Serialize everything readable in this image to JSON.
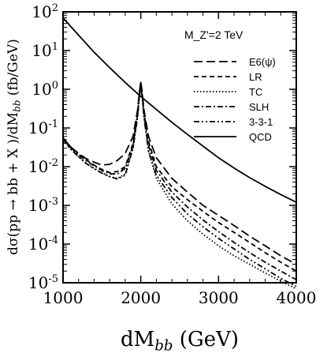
{
  "chart_data": {
    "type": "line",
    "xlabel": "dM_bb  (GeV)",
    "ylabel": "dσ(pp → bb + X )/dM_bb  (fb/GeV)",
    "xlim": [
      1000,
      4000
    ],
    "ylim": [
      1e-05,
      100
    ],
    "y_scale": "log",
    "grid": false,
    "legend_position": "top-right",
    "annotation": "M_Z'=2 TeV",
    "x_ticks": [
      1000,
      2000,
      3000,
      4000
    ],
    "y_ticks": [
      {
        "value": 100,
        "label": "10^2"
      },
      {
        "value": 10,
        "label": "10^1"
      },
      {
        "value": 1,
        "label": "10^0"
      },
      {
        "value": 0.1,
        "label": "10^-1"
      },
      {
        "value": 0.01,
        "label": "10^-2"
      },
      {
        "value": 0.001,
        "label": "10^-3"
      },
      {
        "value": 0.0001,
        "label": "10^-4"
      },
      {
        "value": 1e-05,
        "label": "10^-5"
      }
    ],
    "series": [
      {
        "name": "E6(ψ)",
        "dash": "long-dash",
        "points": [
          [
            1000,
            0.055
          ],
          [
            1100,
            0.032
          ],
          [
            1200,
            0.022
          ],
          [
            1300,
            0.016
          ],
          [
            1400,
            0.013
          ],
          [
            1500,
            0.011
          ],
          [
            1600,
            0.0115
          ],
          [
            1700,
            0.0145
          ],
          [
            1800,
            0.022
          ],
          [
            1900,
            0.06
          ],
          [
            1960,
            0.3
          ],
          [
            1980,
            0.8
          ],
          [
            2000,
            1.6
          ],
          [
            2020,
            0.8
          ],
          [
            2040,
            0.3
          ],
          [
            2100,
            0.06
          ],
          [
            2200,
            0.017
          ],
          [
            2400,
            0.005
          ],
          [
            2600,
            0.0022
          ],
          [
            2800,
            0.001
          ],
          [
            3000,
            0.00055
          ],
          [
            3200,
            0.0003
          ],
          [
            3400,
            0.00016
          ],
          [
            3600,
            9e-05
          ],
          [
            3800,
            5e-05
          ],
          [
            4000,
            3e-05
          ]
        ]
      },
      {
        "name": "LR",
        "dash": "short-dash",
        "points": [
          [
            1000,
            0.055
          ],
          [
            1100,
            0.032
          ],
          [
            1200,
            0.021
          ],
          [
            1300,
            0.015
          ],
          [
            1400,
            0.011
          ],
          [
            1500,
            0.0085
          ],
          [
            1600,
            0.007
          ],
          [
            1700,
            0.0075
          ],
          [
            1800,
            0.01
          ],
          [
            1900,
            0.04
          ],
          [
            1960,
            0.25
          ],
          [
            1980,
            0.7
          ],
          [
            2000,
            1.5
          ],
          [
            2020,
            0.7
          ],
          [
            2040,
            0.25
          ],
          [
            2100,
            0.045
          ],
          [
            2200,
            0.01
          ],
          [
            2400,
            0.003
          ],
          [
            2600,
            0.0014
          ],
          [
            2800,
            0.0007
          ],
          [
            3000,
            0.00036
          ],
          [
            3200,
            0.0002
          ],
          [
            3400,
            0.00011
          ],
          [
            3600,
            6e-05
          ],
          [
            3800,
            3.4e-05
          ],
          [
            4000,
            2e-05
          ]
        ]
      },
      {
        "name": "TC",
        "dash": "dotted",
        "points": [
          [
            1000,
            0.05
          ],
          [
            1100,
            0.028
          ],
          [
            1200,
            0.018
          ],
          [
            1300,
            0.012
          ],
          [
            1400,
            0.009
          ],
          [
            1500,
            0.007
          ],
          [
            1600,
            0.0055
          ],
          [
            1700,
            0.005
          ],
          [
            1800,
            0.0065
          ],
          [
            1900,
            0.03
          ],
          [
            1960,
            0.2
          ],
          [
            1980,
            0.6
          ],
          [
            2000,
            1.3
          ],
          [
            2020,
            0.6
          ],
          [
            2040,
            0.2
          ],
          [
            2100,
            0.025
          ],
          [
            2200,
            0.005
          ],
          [
            2400,
            0.0011
          ],
          [
            2600,
            0.0004
          ],
          [
            2800,
            0.00018
          ],
          [
            3000,
            9e-05
          ],
          [
            3200,
            5e-05
          ],
          [
            3400,
            3e-05
          ],
          [
            3600,
            1.8e-05
          ],
          [
            3800,
            1.1e-05
          ],
          [
            4000,
            7e-06
          ]
        ]
      },
      {
        "name": "SLH",
        "dash": "dash-dot",
        "points": [
          [
            1000,
            0.053
          ],
          [
            1100,
            0.031
          ],
          [
            1200,
            0.02
          ],
          [
            1300,
            0.014
          ],
          [
            1400,
            0.0105
          ],
          [
            1500,
            0.008
          ],
          [
            1600,
            0.0065
          ],
          [
            1700,
            0.0065
          ],
          [
            1800,
            0.009
          ],
          [
            1900,
            0.035
          ],
          [
            1960,
            0.25
          ],
          [
            1980,
            0.7
          ],
          [
            2000,
            1.4
          ],
          [
            2020,
            0.7
          ],
          [
            2040,
            0.25
          ],
          [
            2100,
            0.035
          ],
          [
            2200,
            0.008
          ],
          [
            2400,
            0.0022
          ],
          [
            2600,
            0.0009
          ],
          [
            2800,
            0.00042
          ],
          [
            3000,
            0.00021
          ],
          [
            3200,
            0.00011
          ],
          [
            3400,
            6e-05
          ],
          [
            3600,
            3.4e-05
          ],
          [
            3800,
            2e-05
          ],
          [
            4000,
            1.2e-05
          ]
        ]
      },
      {
        "name": "3-3-1",
        "dash": "dash-dot-dot",
        "points": [
          [
            1000,
            0.05
          ],
          [
            1100,
            0.028
          ],
          [
            1200,
            0.018
          ],
          [
            1300,
            0.012
          ],
          [
            1400,
            0.0088
          ],
          [
            1500,
            0.0068
          ],
          [
            1600,
            0.0055
          ],
          [
            1700,
            0.0048
          ],
          [
            1800,
            0.006
          ],
          [
            1900,
            0.03
          ],
          [
            1960,
            0.2
          ],
          [
            1980,
            0.6
          ],
          [
            2000,
            1.2
          ],
          [
            2020,
            0.6
          ],
          [
            2040,
            0.2
          ],
          [
            2100,
            0.025
          ],
          [
            2200,
            0.006
          ],
          [
            2400,
            0.0016
          ],
          [
            2600,
            0.0006
          ],
          [
            2800,
            0.00028
          ],
          [
            3000,
            0.00014
          ],
          [
            3200,
            7.5e-05
          ],
          [
            3400,
            4e-05
          ],
          [
            3600,
            2.3e-05
          ],
          [
            3800,
            1.3e-05
          ],
          [
            4000,
            8e-06
          ]
        ]
      },
      {
        "name": "QCD",
        "dash": "solid",
        "points": [
          [
            1000,
            70
          ],
          [
            1200,
            25
          ],
          [
            1400,
            9
          ],
          [
            1600,
            3.6
          ],
          [
            1800,
            1.5
          ],
          [
            2000,
            0.65
          ],
          [
            2200,
            0.3
          ],
          [
            2400,
            0.14
          ],
          [
            2600,
            0.068
          ],
          [
            2800,
            0.034
          ],
          [
            3000,
            0.017
          ],
          [
            3200,
            0.0092
          ],
          [
            3400,
            0.0052
          ],
          [
            3600,
            0.0031
          ],
          [
            3800,
            0.0019
          ],
          [
            4000,
            0.0012
          ]
        ]
      }
    ]
  }
}
